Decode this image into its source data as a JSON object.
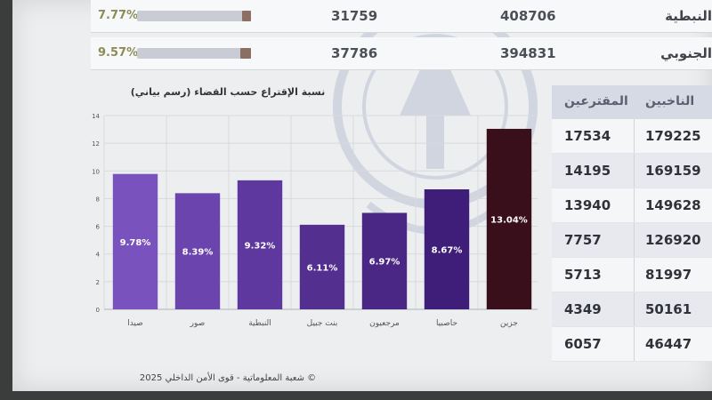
{
  "top_table": {
    "rows": [
      {
        "percent": "7.77%",
        "fill": 0.0777,
        "value1": "31759",
        "value2": "408706",
        "name": "النبطية"
      },
      {
        "percent": "9.57%",
        "fill": 0.0957,
        "value1": "37786",
        "value2": "394831",
        "name": "الجنوبي"
      }
    ]
  },
  "right_table": {
    "headers": [
      "المقترعين",
      "الناخبين"
    ],
    "rows": [
      [
        "17534",
        "179225"
      ],
      [
        "14195",
        "169159"
      ],
      [
        "13940",
        "149628"
      ],
      [
        "7757",
        "126920"
      ],
      [
        "5713",
        "81997"
      ],
      [
        "4349",
        "50161"
      ],
      [
        "6057",
        "46447"
      ]
    ]
  },
  "chart_data": {
    "type": "bar",
    "title": "نسبة الإقتراع حسب القضاء (رسم بياني)",
    "categories": [
      "صيدا",
      "صور",
      "النبطية",
      "بنت جبيل",
      "مرجعيون",
      "حاصبيا",
      "جزين"
    ],
    "values": [
      9.78,
      8.39,
      9.32,
      6.11,
      6.97,
      8.67,
      13.04
    ],
    "labels": [
      "9.78%",
      "8.39%",
      "9.32%",
      "6.11%",
      "6.97%",
      "8.67%",
      "13.04%"
    ],
    "colors": [
      "#7a52bd",
      "#6b44ad",
      "#5e389e",
      "#532f90",
      "#4a2784",
      "#3e1e79",
      "#3a0f1c"
    ],
    "ylim": [
      0,
      14
    ],
    "yticks": [
      "0",
      "2",
      "4",
      "6",
      "8",
      "10",
      "12",
      "14"
    ],
    "grid": true
  },
  "footer": "© شعبة المعلوماتية - قوى الأمن الداخلي 2025"
}
